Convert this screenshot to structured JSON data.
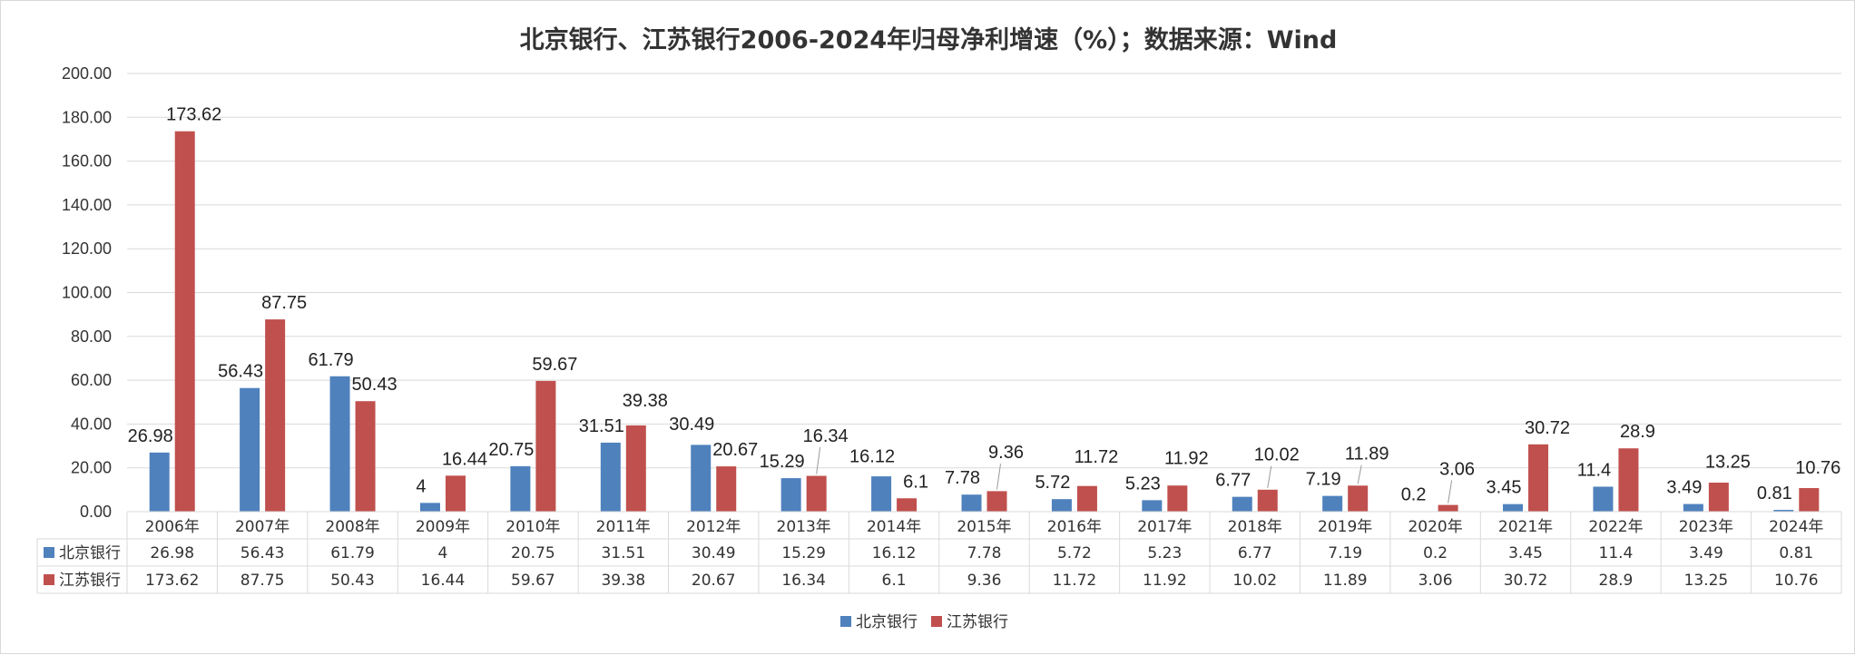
{
  "chart_data": {
    "type": "bar",
    "title": "北京银行、江苏银行2006-2024年归母净利增速（%）；数据来源：Wind",
    "categories": [
      "2006年",
      "2007年",
      "2008年",
      "2009年",
      "2010年",
      "2011年",
      "2012年",
      "2013年",
      "2014年",
      "2015年",
      "2016年",
      "2017年",
      "2018年",
      "2019年",
      "2020年",
      "2021年",
      "2022年",
      "2023年",
      "2024年"
    ],
    "series": [
      {
        "name": "北京银行",
        "color": "#4f81bd",
        "values": [
          26.98,
          56.43,
          61.79,
          4,
          20.75,
          31.51,
          30.49,
          15.29,
          16.12,
          7.78,
          5.72,
          5.23,
          6.77,
          7.19,
          0.2,
          3.45,
          11.4,
          3.49,
          0.81
        ]
      },
      {
        "name": "江苏银行",
        "color": "#c0504d",
        "values": [
          173.62,
          87.75,
          50.43,
          16.44,
          59.67,
          39.38,
          20.67,
          16.34,
          6.1,
          9.36,
          11.72,
          11.92,
          10.02,
          11.89,
          3.06,
          30.72,
          28.9,
          13.25,
          10.76
        ]
      }
    ],
    "yticks": [
      "0.00",
      "20.00",
      "40.00",
      "60.00",
      "80.00",
      "100.00",
      "120.00",
      "140.00",
      "160.00",
      "180.00",
      "200.00"
    ],
    "ylim": [
      0,
      200
    ],
    "xlabel": "",
    "ylabel": "",
    "grid": true,
    "data_table": true,
    "legend_position": "bottom"
  }
}
